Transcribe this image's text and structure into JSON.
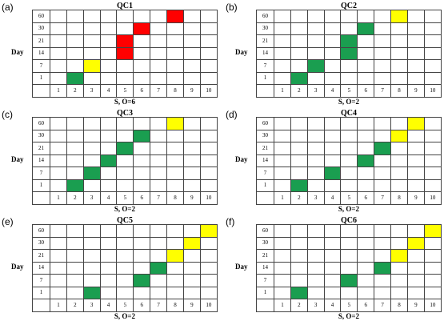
{
  "rows": [
    "60",
    "30",
    "21",
    "14",
    "7",
    "1"
  ],
  "cols": [
    "1",
    "2",
    "3",
    "4",
    "5",
    "6",
    "7",
    "8",
    "9",
    "10"
  ],
  "ylabel": "Day",
  "colors": {
    "green": "#1a9e50",
    "yellow": "#ffff00",
    "red": "#ff0000"
  },
  "panels": [
    {
      "letter": "(a)",
      "title": "QC1",
      "xlabel": "S, O=6",
      "cells": [
        {
          "day": "1",
          "s": "2",
          "color": "green"
        },
        {
          "day": "7",
          "s": "3",
          "color": "yellow"
        },
        {
          "day": "14",
          "s": "5",
          "color": "red"
        },
        {
          "day": "21",
          "s": "5",
          "color": "red"
        },
        {
          "day": "30",
          "s": "6",
          "color": "red"
        },
        {
          "day": "60",
          "s": "8",
          "color": "red"
        }
      ]
    },
    {
      "letter": "(b)",
      "title": "QC2",
      "xlabel": "S, O=2",
      "cells": [
        {
          "day": "1",
          "s": "2",
          "color": "green"
        },
        {
          "day": "7",
          "s": "3",
          "color": "green"
        },
        {
          "day": "14",
          "s": "5",
          "color": "green"
        },
        {
          "day": "21",
          "s": "5",
          "color": "green"
        },
        {
          "day": "30",
          "s": "6",
          "color": "green"
        },
        {
          "day": "60",
          "s": "8",
          "color": "yellow"
        }
      ]
    },
    {
      "letter": "(c)",
      "title": "QC3",
      "xlabel": "S, O=2",
      "cells": [
        {
          "day": "1",
          "s": "2",
          "color": "green"
        },
        {
          "day": "7",
          "s": "3",
          "color": "green"
        },
        {
          "day": "14",
          "s": "4",
          "color": "green"
        },
        {
          "day": "21",
          "s": "5",
          "color": "green"
        },
        {
          "day": "30",
          "s": "6",
          "color": "green"
        },
        {
          "day": "60",
          "s": "8",
          "color": "yellow"
        }
      ]
    },
    {
      "letter": "(d)",
      "title": "QC4",
      "xlabel": "S, O=2",
      "cells": [
        {
          "day": "1",
          "s": "2",
          "color": "green"
        },
        {
          "day": "7",
          "s": "4",
          "color": "green"
        },
        {
          "day": "14",
          "s": "6",
          "color": "green"
        },
        {
          "day": "21",
          "s": "7",
          "color": "green"
        },
        {
          "day": "30",
          "s": "8",
          "color": "yellow"
        },
        {
          "day": "60",
          "s": "9",
          "color": "yellow"
        }
      ]
    },
    {
      "letter": "(e)",
      "title": "QC5",
      "xlabel": "S, O=2",
      "cells": [
        {
          "day": "1",
          "s": "3",
          "color": "green"
        },
        {
          "day": "7",
          "s": "6",
          "color": "green"
        },
        {
          "day": "14",
          "s": "7",
          "color": "green"
        },
        {
          "day": "21",
          "s": "8",
          "color": "yellow"
        },
        {
          "day": "30",
          "s": "9",
          "color": "yellow"
        },
        {
          "day": "60",
          "s": "10",
          "color": "yellow"
        }
      ]
    },
    {
      "letter": "(f)",
      "title": "QC6",
      "xlabel": "S, O=2",
      "cells": [
        {
          "day": "1",
          "s": "2",
          "color": "green"
        },
        {
          "day": "7",
          "s": "5",
          "color": "green"
        },
        {
          "day": "14",
          "s": "7",
          "color": "green"
        },
        {
          "day": "21",
          "s": "8",
          "color": "yellow"
        },
        {
          "day": "30",
          "s": "9",
          "color": "yellow"
        },
        {
          "day": "60",
          "s": "10",
          "color": "yellow"
        }
      ]
    }
  ]
}
